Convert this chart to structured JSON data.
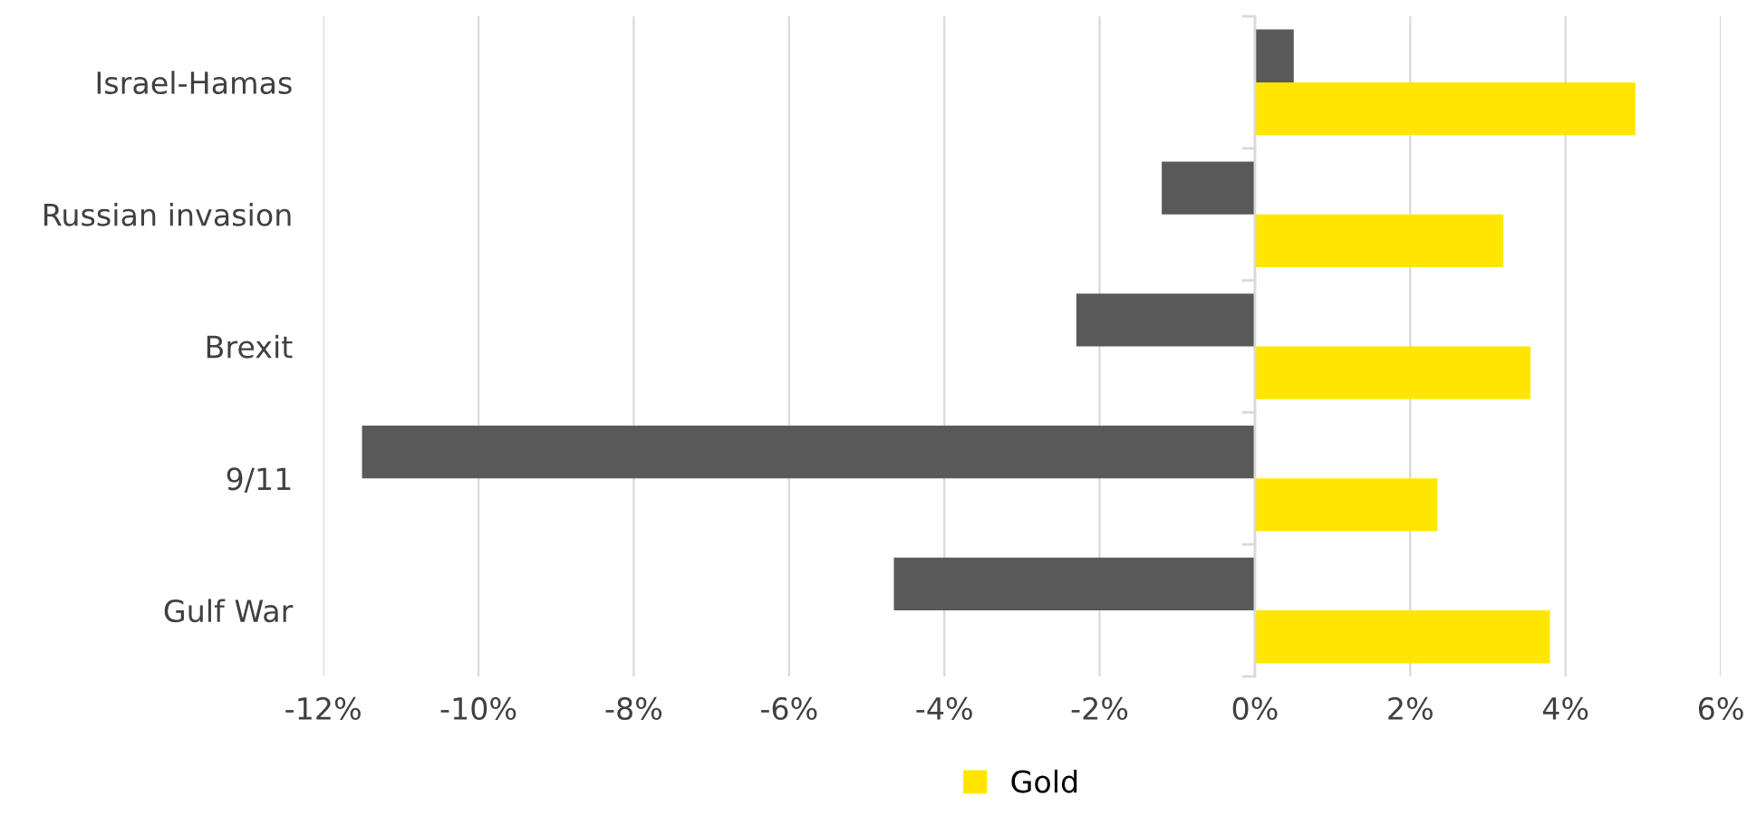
{
  "chart_data": {
    "type": "bar",
    "orientation": "horizontal",
    "categories": [
      "Israel-Hamas",
      "Russian invasion",
      "Brexit",
      "9/11",
      "Gulf War"
    ],
    "series": [
      {
        "color": "#595959",
        "values": [
          0.5,
          -1.2,
          -2.3,
          -11.5,
          -4.65
        ]
      },
      {
        "name": "Gold",
        "color": "#ffe600",
        "values": [
          4.9,
          3.2,
          3.55,
          2.35,
          3.8
        ]
      }
    ],
    "xlim": [
      -12,
      6
    ],
    "xticks": [
      {
        "value": -12,
        "label": "-12%"
      },
      {
        "value": -10,
        "label": "-10%"
      },
      {
        "value": -8,
        "label": "-8%"
      },
      {
        "value": -6,
        "label": "-6%"
      },
      {
        "value": -4,
        "label": "-4%"
      },
      {
        "value": -2,
        "label": "-2%"
      },
      {
        "value": 0,
        "label": "0%"
      },
      {
        "value": 2,
        "label": "2%"
      },
      {
        "value": 4,
        "label": "4%"
      },
      {
        "value": 6,
        "label": "6%"
      }
    ],
    "grid": "x",
    "legend": "bottom"
  }
}
